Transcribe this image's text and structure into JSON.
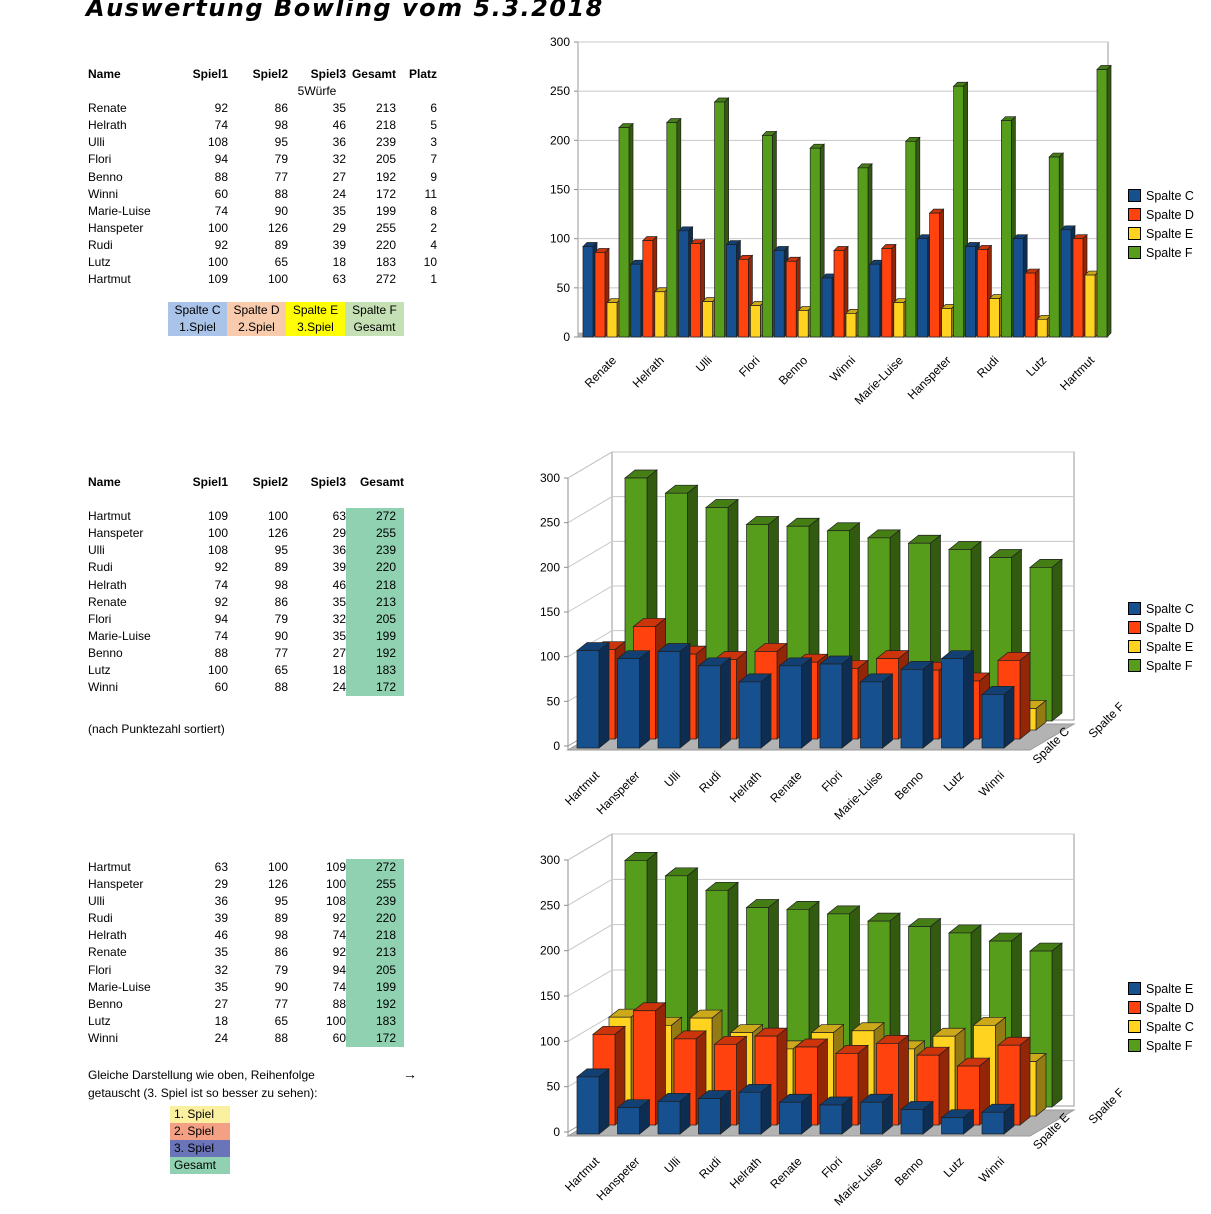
{
  "title": "Auswertung Bowling vom 5.3.2018",
  "colors": {
    "gesamt_highlight": "#90d1b2",
    "series_blue": "#17508E",
    "series_red": "#FF420E",
    "series_yellow": "#FFD320",
    "series_green": "#579D1C"
  },
  "tables": {
    "t1": {
      "headers": [
        "Name",
        "Spiel1",
        "Spiel2",
        "Spiel3",
        "Gesamt",
        "Platz"
      ],
      "subheader": "5Würfe",
      "rows": [
        [
          "Renate",
          92,
          86,
          35,
          213,
          6
        ],
        [
          "Helrath",
          74,
          98,
          46,
          218,
          5
        ],
        [
          "Ulli",
          108,
          95,
          36,
          239,
          3
        ],
        [
          "Flori",
          94,
          79,
          32,
          205,
          7
        ],
        [
          "Benno",
          88,
          77,
          27,
          192,
          9
        ],
        [
          "Winni",
          60,
          88,
          24,
          172,
          11
        ],
        [
          "Marie-Luise",
          74,
          90,
          35,
          199,
          8
        ],
        [
          "Hanspeter",
          100,
          126,
          29,
          255,
          2
        ],
        [
          "Rudi",
          92,
          89,
          39,
          220,
          4
        ],
        [
          "Lutz",
          100,
          65,
          18,
          183,
          10
        ],
        [
          "Hartmut",
          109,
          100,
          63,
          272,
          1
        ]
      ]
    },
    "t2": {
      "headers": [
        "Name",
        "Spiel1",
        "Spiel2",
        "Spiel3",
        "Gesamt"
      ],
      "rows": [
        [
          "Hartmut",
          109,
          100,
          63,
          272
        ],
        [
          "Hanspeter",
          100,
          126,
          29,
          255
        ],
        [
          "Ulli",
          108,
          95,
          36,
          239
        ],
        [
          "Rudi",
          92,
          89,
          39,
          220
        ],
        [
          "Helrath",
          74,
          98,
          46,
          218
        ],
        [
          "Renate",
          92,
          86,
          35,
          213
        ],
        [
          "Flori",
          94,
          79,
          32,
          205
        ],
        [
          "Marie-Luise",
          74,
          90,
          35,
          199
        ],
        [
          "Benno",
          88,
          77,
          27,
          192
        ],
        [
          "Lutz",
          100,
          65,
          18,
          183
        ],
        [
          "Winni",
          60,
          88,
          24,
          172
        ]
      ]
    },
    "t3": {
      "rows": [
        [
          "Hartmut",
          63,
          100,
          109,
          272
        ],
        [
          "Hanspeter",
          29,
          126,
          100,
          255
        ],
        [
          "Ulli",
          36,
          95,
          108,
          239
        ],
        [
          "Rudi",
          39,
          89,
          92,
          220
        ],
        [
          "Helrath",
          46,
          98,
          74,
          218
        ],
        [
          "Renate",
          35,
          86,
          92,
          213
        ],
        [
          "Flori",
          32,
          79,
          94,
          205
        ],
        [
          "Marie-Luise",
          35,
          90,
          74,
          199
        ],
        [
          "Benno",
          27,
          77,
          88,
          192
        ],
        [
          "Lutz",
          18,
          65,
          100,
          183
        ],
        [
          "Winni",
          24,
          88,
          60,
          172
        ]
      ]
    }
  },
  "legend_blocks": {
    "spalten": [
      {
        "line1": "Spalte C",
        "line2": "1.Spiel",
        "color": "#a9c4e8"
      },
      {
        "line1": "Spalte D",
        "line2": "2.Spiel",
        "color": "#f8cbad"
      },
      {
        "line1": "Spalte E",
        "line2": "3.Spiel",
        "color": "#ffff00"
      },
      {
        "line1": "Spalte F",
        "line2": "Gesamt",
        "color": "#c5e0b4"
      }
    ],
    "spiele": [
      {
        "label": "1. Spiel",
        "color": "#fbf0a0"
      },
      {
        "label": "2. Spiel",
        "color": "#f4a084"
      },
      {
        "label": "3. Spiel",
        "color": "#6a74b8"
      },
      {
        "label": "Gesamt",
        "color": "#90d1b2"
      }
    ]
  },
  "notes": {
    "sorted": "(nach Punktezahl sortiert)",
    "swap_line1": "Gleiche Darstellung wie oben, Reihenfolge",
    "swap_line2": "getauscht (3. Spiel ist so besser zu sehen):",
    "arrow": "→"
  },
  "chart_data": [
    {
      "type": "bar",
      "projection": "2.5d",
      "categories": [
        "Renate",
        "Helrath",
        "Ulli",
        "Flori",
        "Benno",
        "Winni",
        "Marie-Luise",
        "Hanspeter",
        "Rudi",
        "Lutz",
        "Hartmut"
      ],
      "series": [
        {
          "name": "Spalte C",
          "color": "#17508E",
          "values": [
            92,
            74,
            108,
            94,
            88,
            60,
            74,
            100,
            92,
            100,
            109
          ]
        },
        {
          "name": "Spalte D",
          "color": "#FF420E",
          "values": [
            86,
            98,
            95,
            79,
            77,
            88,
            90,
            126,
            89,
            65,
            100
          ]
        },
        {
          "name": "Spalte E",
          "color": "#FFD320",
          "values": [
            35,
            46,
            36,
            32,
            27,
            24,
            35,
            29,
            39,
            18,
            63
          ]
        },
        {
          "name": "Spalte F",
          "color": "#579D1C",
          "values": [
            213,
            218,
            239,
            205,
            192,
            172,
            199,
            255,
            220,
            183,
            272
          ]
        }
      ],
      "ylim": [
        0,
        300
      ],
      "ytick": 50,
      "grid": true,
      "legend_position": "right"
    },
    {
      "type": "bar",
      "projection": "3d",
      "categories": [
        "Hartmut",
        "Hanspeter",
        "Ulli",
        "Rudi",
        "Helrath",
        "Renate",
        "Flori",
        "Marie-Luise",
        "Benno",
        "Lutz",
        "Winni"
      ],
      "series": [
        {
          "name": "Spalte C",
          "color": "#17508E",
          "values": [
            109,
            100,
            108,
            92,
            74,
            92,
            94,
            74,
            88,
            100,
            60
          ]
        },
        {
          "name": "Spalte D",
          "color": "#FF420E",
          "values": [
            100,
            126,
            95,
            89,
            98,
            86,
            79,
            90,
            77,
            65,
            88
          ]
        },
        {
          "name": "Spalte E",
          "color": "#FFD320",
          "values": [
            63,
            29,
            36,
            39,
            46,
            35,
            32,
            35,
            27,
            18,
            24
          ]
        },
        {
          "name": "Spalte F",
          "color": "#579D1C",
          "values": [
            272,
            255,
            239,
            220,
            218,
            213,
            205,
            199,
            192,
            183,
            172
          ]
        }
      ],
      "depth_axis_labels": [
        "Spalte C",
        "Spalte F"
      ],
      "ylim": [
        0,
        300
      ],
      "ytick": 50,
      "grid": true,
      "legend_position": "right"
    },
    {
      "type": "bar",
      "projection": "3d",
      "categories": [
        "Hartmut",
        "Hanspeter",
        "Ulli",
        "Rudi",
        "Helrath",
        "Renate",
        "Flori",
        "Marie-Luise",
        "Benno",
        "Lutz",
        "Winni"
      ],
      "series": [
        {
          "name": "Spalte E",
          "color": "#17508E",
          "values": [
            63,
            29,
            36,
            39,
            46,
            35,
            32,
            35,
            27,
            18,
            24
          ]
        },
        {
          "name": "Spalte D",
          "color": "#FF420E",
          "values": [
            100,
            126,
            95,
            89,
            98,
            86,
            79,
            90,
            77,
            65,
            88
          ]
        },
        {
          "name": "Spalte C",
          "color": "#FFD320",
          "values": [
            109,
            100,
            108,
            92,
            74,
            92,
            94,
            74,
            88,
            100,
            60
          ]
        },
        {
          "name": "Spalte F",
          "color": "#579D1C",
          "values": [
            272,
            255,
            239,
            220,
            218,
            213,
            205,
            199,
            192,
            183,
            172
          ]
        }
      ],
      "depth_axis_labels": [
        "Spalte E",
        "Spalte F"
      ],
      "ylim": [
        0,
        300
      ],
      "ytick": 50,
      "grid": true,
      "legend_position": "right"
    }
  ]
}
